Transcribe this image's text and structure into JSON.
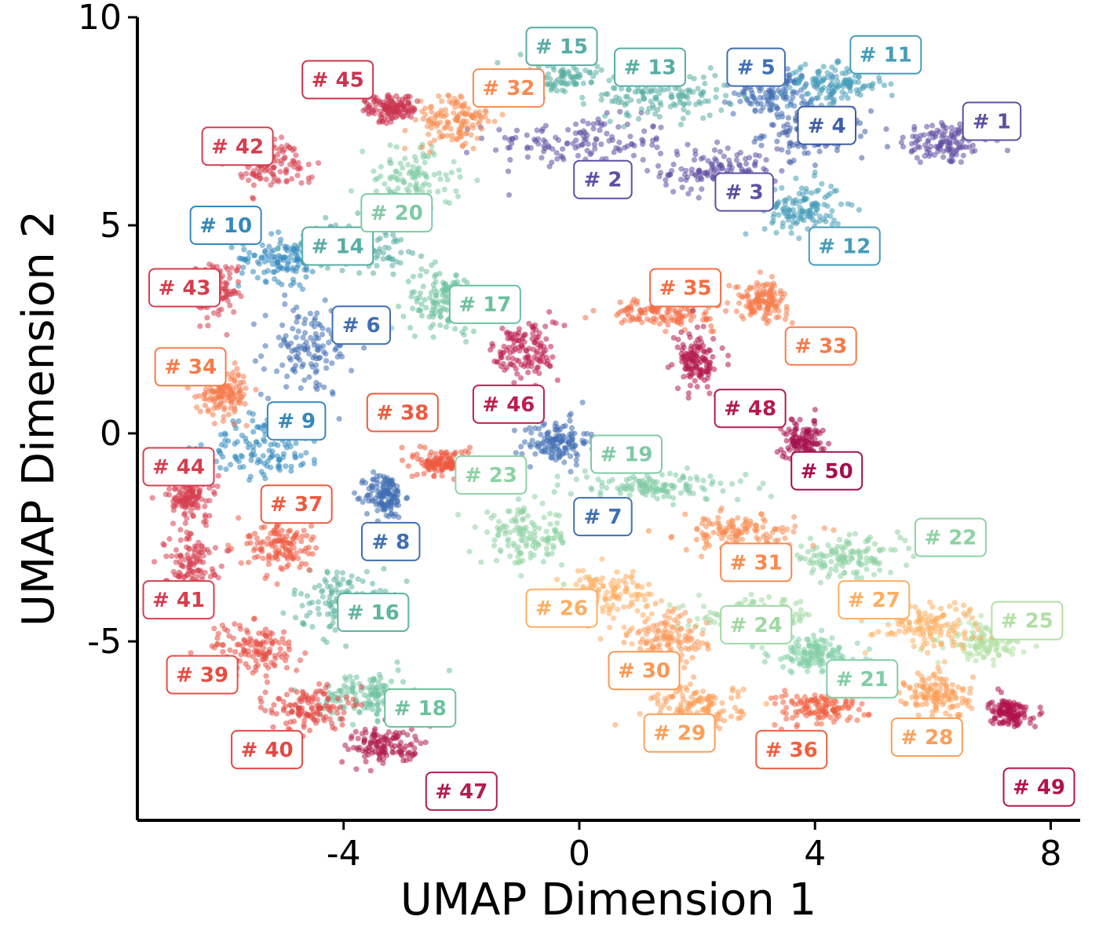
{
  "chart_data": {
    "type": "scatter",
    "title": "",
    "xlabel": "UMAP Dimension 1",
    "ylabel": "UMAP Dimension 2",
    "xlim": [
      -7.5,
      8.5
    ],
    "ylim": [
      -9.3,
      10.0
    ],
    "xticks": [
      -4,
      0,
      4,
      8
    ],
    "xtick_labels": [
      "-4",
      "0",
      "4",
      "8"
    ],
    "yticks": [
      10,
      5,
      0,
      -5
    ],
    "ytick_labels": [
      "10",
      "5",
      "0",
      "-5"
    ],
    "grid": false,
    "legend": "none",
    "clusters": [
      {
        "label": "# 1",
        "color": "#5e4fa2",
        "center": [
          6.2,
          7.0
        ],
        "spread": [
          0.7,
          0.5
        ],
        "label_pos": [
          7.0,
          7.5
        ]
      },
      {
        "label": "# 2",
        "color": "#5e4fa2",
        "center": [
          0.0,
          7.0
        ],
        "spread": [
          1.4,
          0.55
        ],
        "label_pos": [
          0.4,
          6.1
        ]
      },
      {
        "label": "# 3",
        "color": "#5e4fa2",
        "center": [
          2.4,
          6.3
        ],
        "spread": [
          0.9,
          0.5
        ],
        "label_pos": [
          2.8,
          5.8
        ]
      },
      {
        "label": "# 4",
        "color": "#3f5ea8",
        "center": [
          4.0,
          7.2
        ],
        "spread": [
          0.8,
          0.5
        ],
        "label_pos": [
          4.2,
          7.4
        ]
      },
      {
        "label": "# 5",
        "color": "#3f6eb3",
        "center": [
          3.3,
          8.2
        ],
        "spread": [
          0.6,
          0.5
        ],
        "label_pos": [
          3.0,
          8.8
        ]
      },
      {
        "label": "# 6",
        "color": "#3f6eb3",
        "center": [
          -4.6,
          2.0
        ],
        "spread": [
          0.7,
          1.0
        ],
        "label_pos": [
          -3.7,
          2.6
        ]
      },
      {
        "label": "# 7",
        "color": "#3f6eb3",
        "center": [
          -0.4,
          -0.2
        ],
        "spread": [
          0.5,
          0.5
        ],
        "label_pos": [
          0.4,
          -2.0
        ]
      },
      {
        "label": "# 8",
        "color": "#3f6eb3",
        "center": [
          -3.3,
          -1.5
        ],
        "spread": [
          0.3,
          0.5
        ],
        "label_pos": [
          -3.2,
          -2.6
        ]
      },
      {
        "label": "# 9",
        "color": "#3288bd",
        "center": [
          -5.3,
          -0.3
        ],
        "spread": [
          0.9,
          0.7
        ],
        "label_pos": [
          -4.8,
          0.3
        ]
      },
      {
        "label": "# 10",
        "color": "#3288bd",
        "center": [
          -5.0,
          4.2
        ],
        "spread": [
          0.7,
          0.5
        ],
        "label_pos": [
          -6.0,
          5.0
        ]
      },
      {
        "label": "# 11",
        "color": "#469cb8",
        "center": [
          4.3,
          8.4
        ],
        "spread": [
          0.8,
          0.4
        ],
        "label_pos": [
          5.2,
          9.1
        ]
      },
      {
        "label": "# 12",
        "color": "#469cb8",
        "center": [
          3.8,
          5.4
        ],
        "spread": [
          0.6,
          0.6
        ],
        "label_pos": [
          4.5,
          4.5
        ]
      },
      {
        "label": "# 13",
        "color": "#57ada3",
        "center": [
          1.4,
          8.1
        ],
        "spread": [
          1.0,
          0.5
        ],
        "label_pos": [
          1.2,
          8.8
        ]
      },
      {
        "label": "# 14",
        "color": "#57ada3",
        "center": [
          -3.8,
          4.5
        ],
        "spread": [
          0.8,
          0.5
        ],
        "label_pos": [
          -4.1,
          4.5
        ]
      },
      {
        "label": "# 15",
        "color": "#57ada3",
        "center": [
          -0.5,
          8.5
        ],
        "spread": [
          0.8,
          0.4
        ],
        "label_pos": [
          -0.3,
          9.3
        ]
      },
      {
        "label": "# 16",
        "color": "#5fb49e",
        "center": [
          -4.0,
          -4.0
        ],
        "spread": [
          0.8,
          0.7
        ],
        "label_pos": [
          -3.5,
          -4.3
        ]
      },
      {
        "label": "# 17",
        "color": "#6cc19c",
        "center": [
          -2.3,
          3.2
        ],
        "spread": [
          0.6,
          0.7
        ],
        "label_pos": [
          -1.6,
          3.1
        ]
      },
      {
        "label": "# 18",
        "color": "#6cc19c",
        "center": [
          -3.6,
          -6.3
        ],
        "spread": [
          0.7,
          0.5
        ],
        "label_pos": [
          -2.7,
          -6.6
        ]
      },
      {
        "label": "# 19",
        "color": "#7fcaa4",
        "center": [
          1.3,
          -1.3
        ],
        "spread": [
          1.4,
          0.3
        ],
        "label_pos": [
          0.8,
          -0.5
        ]
      },
      {
        "label": "# 20",
        "color": "#7fcaa4",
        "center": [
          -2.9,
          6.0
        ],
        "spread": [
          0.7,
          0.8
        ],
        "label_pos": [
          -3.1,
          5.3
        ]
      },
      {
        "label": "# 21",
        "color": "#82cda5",
        "center": [
          4.0,
          -5.3
        ],
        "spread": [
          0.7,
          0.4
        ],
        "label_pos": [
          4.8,
          -5.9
        ]
      },
      {
        "label": "# 22",
        "color": "#8ed2a3",
        "center": [
          4.5,
          -3.0
        ],
        "spread": [
          0.9,
          0.4
        ],
        "label_pos": [
          6.3,
          -2.5
        ]
      },
      {
        "label": "# 23",
        "color": "#8ed2a3",
        "center": [
          -0.9,
          -2.5
        ],
        "spread": [
          0.7,
          0.6
        ],
        "label_pos": [
          -1.5,
          -1.0
        ]
      },
      {
        "label": "# 24",
        "color": "#a0d9a2",
        "center": [
          3.0,
          -4.4
        ],
        "spread": [
          0.9,
          0.4
        ],
        "label_pos": [
          3.0,
          -4.6
        ]
      },
      {
        "label": "# 25",
        "color": "#b1e0a2",
        "center": [
          6.9,
          -5.0
        ],
        "spread": [
          0.6,
          0.4
        ],
        "label_pos": [
          7.6,
          -4.5
        ]
      },
      {
        "label": "# 26",
        "color": "#fdae61",
        "center": [
          0.5,
          -3.9
        ],
        "spread": [
          0.7,
          0.6
        ],
        "label_pos": [
          -0.3,
          -4.2
        ]
      },
      {
        "label": "# 27",
        "color": "#fdae61",
        "center": [
          5.9,
          -4.6
        ],
        "spread": [
          0.8,
          0.5
        ],
        "label_pos": [
          5.0,
          -4.0
        ]
      },
      {
        "label": "# 28",
        "color": "#fc9f58",
        "center": [
          6.1,
          -6.3
        ],
        "spread": [
          0.5,
          0.5
        ],
        "label_pos": [
          5.9,
          -7.3
        ]
      },
      {
        "label": "# 29",
        "color": "#fc9f58",
        "center": [
          2.0,
          -6.6
        ],
        "spread": [
          0.7,
          0.5
        ],
        "label_pos": [
          1.7,
          -7.2
        ]
      },
      {
        "label": "# 30",
        "color": "#fa9855",
        "center": [
          1.5,
          -5.0
        ],
        "spread": [
          0.6,
          0.6
        ],
        "label_pos": [
          1.1,
          -5.7
        ]
      },
      {
        "label": "# 31",
        "color": "#f88a4f",
        "center": [
          2.7,
          -2.4
        ],
        "spread": [
          0.9,
          0.4
        ],
        "label_pos": [
          3.0,
          -3.1
        ]
      },
      {
        "label": "# 32",
        "color": "#f88a4f",
        "center": [
          -2.1,
          7.5
        ],
        "spread": [
          0.6,
          0.6
        ],
        "label_pos": [
          -1.2,
          8.3
        ]
      },
      {
        "label": "# 33",
        "color": "#f67b4a",
        "center": [
          3.1,
          3.2
        ],
        "spread": [
          0.4,
          0.4
        ],
        "label_pos": [
          4.1,
          2.1
        ]
      },
      {
        "label": "# 34",
        "color": "#f67b4a",
        "center": [
          -6.0,
          1.0
        ],
        "spread": [
          0.4,
          0.5
        ],
        "label_pos": [
          -6.6,
          1.6
        ]
      },
      {
        "label": "# 35",
        "color": "#f46d43",
        "center": [
          1.4,
          2.9
        ],
        "spread": [
          0.8,
          0.3
        ],
        "label_pos": [
          1.8,
          3.5
        ]
      },
      {
        "label": "# 36",
        "color": "#f0603f",
        "center": [
          4.1,
          -6.6
        ],
        "spread": [
          0.7,
          0.4
        ],
        "label_pos": [
          3.6,
          -7.6
        ]
      },
      {
        "label": "# 37",
        "color": "#ee5a3f",
        "center": [
          -5.1,
          -2.7
        ],
        "spread": [
          0.5,
          0.6
        ],
        "label_pos": [
          -4.8,
          -1.7
        ]
      },
      {
        "label": "# 38",
        "color": "#ee5a3f",
        "center": [
          -2.3,
          -0.7
        ],
        "spread": [
          0.4,
          0.3
        ],
        "label_pos": [
          -3.0,
          0.5
        ]
      },
      {
        "label": "# 39",
        "color": "#e84c42",
        "center": [
          -5.5,
          -5.2
        ],
        "spread": [
          0.7,
          0.6
        ],
        "label_pos": [
          -6.4,
          -5.8
        ]
      },
      {
        "label": "# 40",
        "color": "#e24945",
        "center": [
          -4.6,
          -6.6
        ],
        "spread": [
          0.6,
          0.5
        ],
        "label_pos": [
          -5.3,
          -7.6
        ]
      },
      {
        "label": "# 41",
        "color": "#d53e4f",
        "center": [
          -6.6,
          -3.1
        ],
        "spread": [
          0.4,
          0.7
        ],
        "label_pos": [
          -6.8,
          -4.0
        ]
      },
      {
        "label": "# 42",
        "color": "#d53e4f",
        "center": [
          -5.3,
          6.5
        ],
        "spread": [
          0.6,
          0.5
        ],
        "label_pos": [
          -5.8,
          6.9
        ]
      },
      {
        "label": "# 43",
        "color": "#d53e4f",
        "center": [
          -6.2,
          3.5
        ],
        "spread": [
          0.4,
          0.6
        ],
        "label_pos": [
          -6.7,
          3.5
        ]
      },
      {
        "label": "# 44",
        "color": "#d53e4f",
        "center": [
          -6.6,
          -1.5
        ],
        "spread": [
          0.4,
          0.5
        ],
        "label_pos": [
          -6.8,
          -0.8
        ]
      },
      {
        "label": "# 45",
        "color": "#cb334f",
        "center": [
          -3.2,
          7.8
        ],
        "spread": [
          0.4,
          0.3
        ],
        "label_pos": [
          -4.1,
          8.5
        ]
      },
      {
        "label": "# 46",
        "color": "#be1e4f",
        "center": [
          -0.9,
          2.0
        ],
        "spread": [
          0.5,
          0.7
        ],
        "label_pos": [
          -1.2,
          0.7
        ]
      },
      {
        "label": "# 47",
        "color": "#b01e4f",
        "center": [
          -3.3,
          -7.5
        ],
        "spread": [
          0.6,
          0.4
        ],
        "label_pos": [
          -2.0,
          -8.6
        ]
      },
      {
        "label": "# 48",
        "color": "#b51a4c",
        "center": [
          2.0,
          1.7
        ],
        "spread": [
          0.3,
          0.6
        ],
        "label_pos": [
          2.9,
          0.6
        ]
      },
      {
        "label": "# 49",
        "color": "#b0124c",
        "center": [
          7.3,
          -6.7
        ],
        "spread": [
          0.3,
          0.3
        ],
        "label_pos": [
          7.8,
          -8.5
        ]
      },
      {
        "label": "# 50",
        "color": "#a50f4d",
        "center": [
          3.8,
          -0.2
        ],
        "spread": [
          0.3,
          0.5
        ],
        "label_pos": [
          4.2,
          -0.9
        ]
      }
    ]
  }
}
